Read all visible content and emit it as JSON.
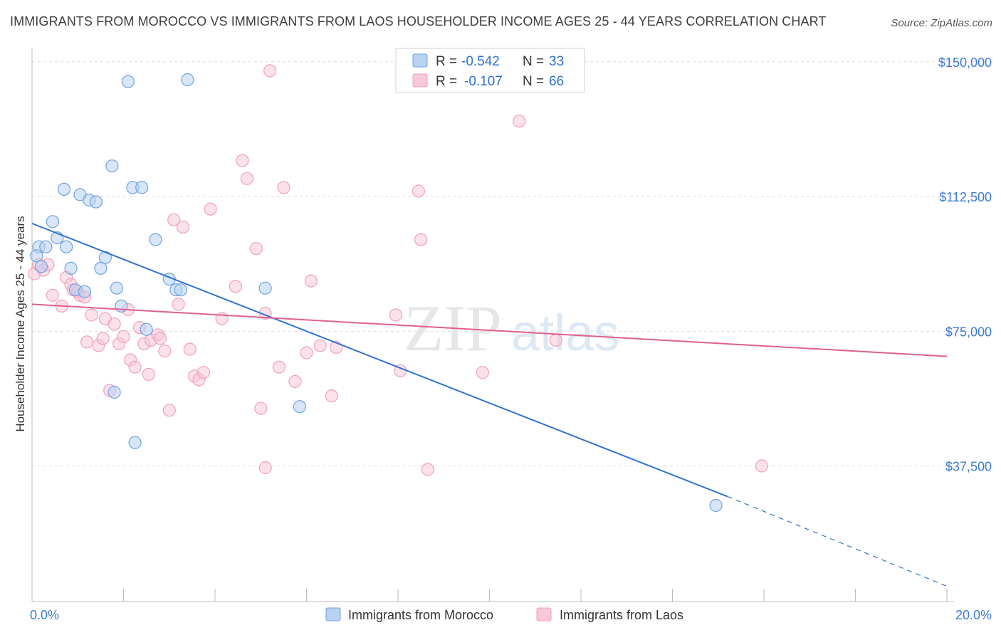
{
  "header": {
    "title": "IMMIGRANTS FROM MOROCCO VS IMMIGRANTS FROM LAOS HOUSEHOLDER INCOME AGES 25 - 44 YEARS CORRELATION CHART",
    "source": "Source: ZipAtlas.com"
  },
  "watermark": {
    "zip": "ZIP",
    "atlas": "atlas"
  },
  "legend_box": {
    "rows": [
      {
        "r_label": "R =",
        "r_value": "-0.542",
        "n_label": "N =",
        "n_value": "33",
        "color": "#6fa3e0"
      },
      {
        "r_label": "R =",
        "r_value": "-0.107",
        "n_label": "N =",
        "n_value": "66",
        "color": "#f0a0bc"
      }
    ]
  },
  "chart_data": {
    "type": "scatter",
    "title": "IMMIGRANTS FROM MOROCCO VS IMMIGRANTS FROM LAOS HOUSEHOLDER INCOME AGES 25 - 44 YEARS CORRELATION CHART",
    "xlabel": "",
    "ylabel": "Householder Income Ages 25 - 44 years",
    "xlim": [
      0,
      20
    ],
    "ylim": [
      0,
      152000
    ],
    "x_tick_labels": [
      "0.0%",
      "20.0%"
    ],
    "y_ticks": [
      {
        "value": 37500,
        "label": "$37,500"
      },
      {
        "value": 75000,
        "label": "$75,000"
      },
      {
        "value": 112500,
        "label": "$112,500"
      },
      {
        "value": 150000,
        "label": "$150,000"
      }
    ],
    "grid": "horizontal-dashed",
    "legend_position": "bottom-center",
    "series": [
      {
        "name": "Immigrants from Morocco",
        "color": "#6fa3e0",
        "fill": "#b8d2f2",
        "line_color": "#2f72d0",
        "trend": {
          "x0": 0.0,
          "y0": 105000,
          "x1": 15.2,
          "y1": 29000,
          "dash_to_x": 20.0,
          "dash_to_y": 4000
        },
        "points": [
          [
            0.15,
            98500
          ],
          [
            0.3,
            98500
          ],
          [
            0.1,
            96000
          ],
          [
            0.2,
            93000
          ],
          [
            0.45,
            105500
          ],
          [
            0.55,
            101000
          ],
          [
            0.7,
            114500
          ],
          [
            0.75,
            98500
          ],
          [
            0.85,
            92500
          ],
          [
            0.95,
            86500
          ],
          [
            1.05,
            113000
          ],
          [
            1.15,
            86000
          ],
          [
            1.25,
            111500
          ],
          [
            1.4,
            111000
          ],
          [
            1.5,
            92500
          ],
          [
            1.6,
            95500
          ],
          [
            1.75,
            121000
          ],
          [
            1.8,
            58000
          ],
          [
            1.85,
            87000
          ],
          [
            1.95,
            82000
          ],
          [
            2.1,
            144500
          ],
          [
            2.2,
            115000
          ],
          [
            2.25,
            44000
          ],
          [
            2.4,
            115000
          ],
          [
            2.5,
            75500
          ],
          [
            2.7,
            100500
          ],
          [
            3.0,
            89500
          ],
          [
            3.15,
            86500
          ],
          [
            3.25,
            86500
          ],
          [
            3.4,
            145000
          ],
          [
            5.1,
            87000
          ],
          [
            5.85,
            54000
          ],
          [
            14.95,
            26500
          ]
        ]
      },
      {
        "name": "Immigrants from Laos",
        "color": "#f0a0bc",
        "fill": "#f8c8d8",
        "line_color": "#e0608c",
        "trend": {
          "x0": 0.0,
          "y0": 82500,
          "x1": 20.0,
          "y1": 68000
        },
        "points": [
          [
            0.05,
            91000
          ],
          [
            0.15,
            93500
          ],
          [
            0.25,
            92000
          ],
          [
            0.35,
            93500
          ],
          [
            0.45,
            85000
          ],
          [
            0.65,
            82000
          ],
          [
            0.75,
            90000
          ],
          [
            0.85,
            88000
          ],
          [
            0.9,
            86500
          ],
          [
            1.0,
            86000
          ],
          [
            1.05,
            85000
          ],
          [
            1.15,
            84500
          ],
          [
            1.2,
            72000
          ],
          [
            1.3,
            79500
          ],
          [
            1.45,
            71000
          ],
          [
            1.55,
            73000
          ],
          [
            1.6,
            78500
          ],
          [
            1.7,
            58500
          ],
          [
            1.8,
            77000
          ],
          [
            1.9,
            71500
          ],
          [
            2.0,
            73500
          ],
          [
            2.1,
            81000
          ],
          [
            2.15,
            67000
          ],
          [
            2.25,
            65000
          ],
          [
            2.35,
            76000
          ],
          [
            2.45,
            71500
          ],
          [
            2.55,
            63000
          ],
          [
            2.6,
            72500
          ],
          [
            2.75,
            74000
          ],
          [
            2.8,
            73000
          ],
          [
            2.9,
            69500
          ],
          [
            3.0,
            53000
          ],
          [
            3.1,
            106000
          ],
          [
            3.2,
            82500
          ],
          [
            3.3,
            104000
          ],
          [
            3.45,
            70000
          ],
          [
            3.55,
            62500
          ],
          [
            3.65,
            61500
          ],
          [
            3.75,
            63500
          ],
          [
            3.9,
            109000
          ],
          [
            4.15,
            78500
          ],
          [
            4.45,
            87500
          ],
          [
            4.6,
            122500
          ],
          [
            4.7,
            117500
          ],
          [
            4.9,
            98000
          ],
          [
            5.0,
            53500
          ],
          [
            5.1,
            37000
          ],
          [
            5.1,
            80000
          ],
          [
            5.2,
            147500
          ],
          [
            5.4,
            65000
          ],
          [
            5.5,
            115000
          ],
          [
            5.75,
            61000
          ],
          [
            6.0,
            69000
          ],
          [
            6.1,
            89000
          ],
          [
            6.3,
            71000
          ],
          [
            6.55,
            57000
          ],
          [
            6.65,
            70500
          ],
          [
            7.95,
            79500
          ],
          [
            8.05,
            64000
          ],
          [
            8.45,
            114000
          ],
          [
            8.5,
            100500
          ],
          [
            8.65,
            36500
          ],
          [
            9.85,
            63500
          ],
          [
            10.65,
            133500
          ],
          [
            11.45,
            72500
          ],
          [
            15.95,
            37500
          ]
        ]
      }
    ]
  }
}
